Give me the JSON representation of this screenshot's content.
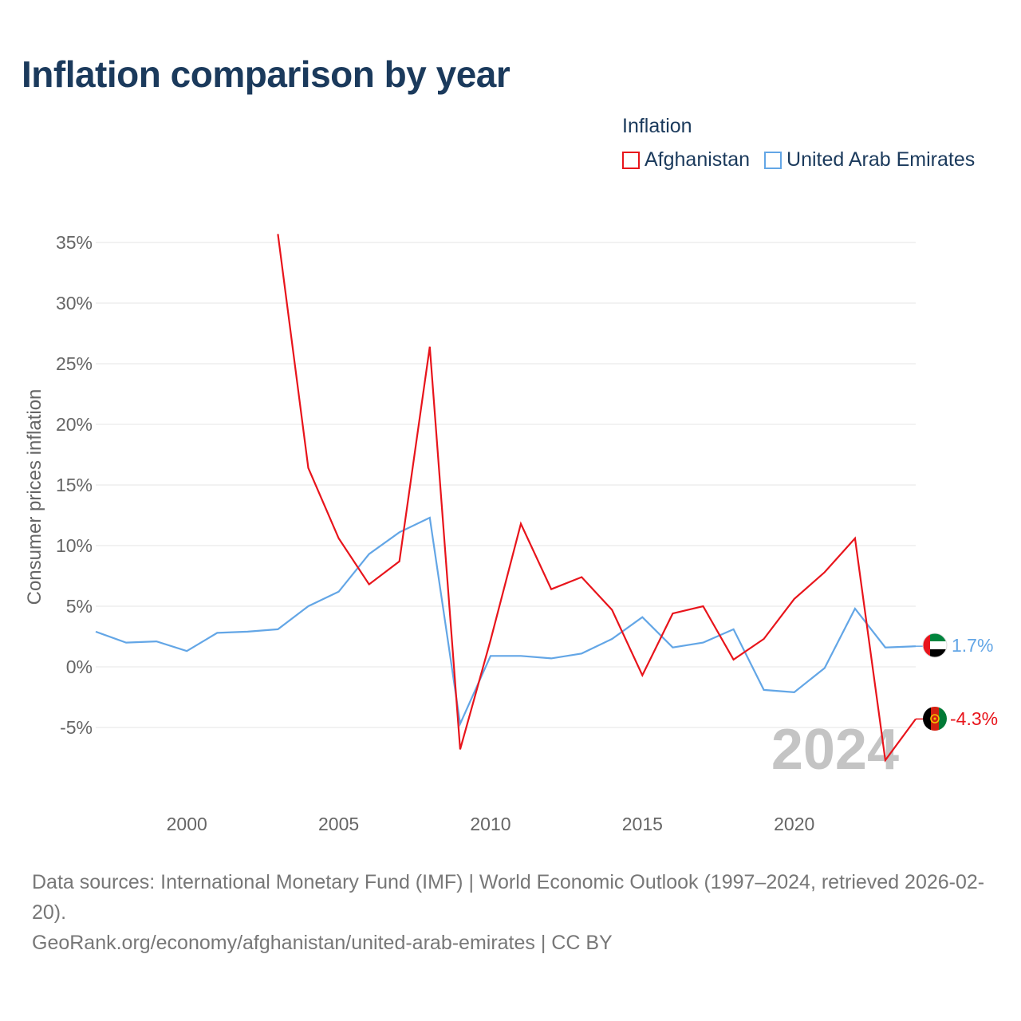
{
  "title": "Inflation comparison by year",
  "legend": {
    "title": "Inflation",
    "items": [
      {
        "label": "Afghanistan",
        "color": "#e8141b"
      },
      {
        "label": "United Arab Emirates",
        "color": "#63a6e6"
      }
    ]
  },
  "year_watermark": "2024",
  "end_labels": {
    "afghanistan": {
      "text": "-4.3%",
      "color": "#e8141b",
      "flag": "afghanistan-flag-icon"
    },
    "uae": {
      "text": "1.7%",
      "color": "#63a6e6",
      "flag": "uae-flag-icon"
    }
  },
  "footer": {
    "sources": "Data sources: International Monetary Fund (IMF) | World Economic Outlook (1997–2024, retrieved 2026-02-20).",
    "credit": "GeoRank.org/economy/afghanistan/united-arab-emirates | CC BY"
  },
  "chart_data": {
    "type": "line",
    "title": "Inflation comparison by year",
    "xlabel": "",
    "ylabel": "Consumer prices inflation",
    "xlim": [
      1997,
      2024
    ],
    "ylim": [
      -10,
      36
    ],
    "yticks": [
      -5,
      0,
      5,
      10,
      15,
      20,
      25,
      30,
      35
    ],
    "ytick_labels": [
      "-5%",
      "0%",
      "5%",
      "10%",
      "15%",
      "20%",
      "25%",
      "30%",
      "35%"
    ],
    "xticks": [
      2000,
      2005,
      2010,
      2015,
      2020
    ],
    "xtick_labels": [
      "2000",
      "2005",
      "2010",
      "2015",
      "2020"
    ],
    "grid": true,
    "series": [
      {
        "name": "Afghanistan",
        "color": "#e8141b",
        "x": [
          2003,
          2004,
          2005,
          2006,
          2007,
          2008,
          2009,
          2010,
          2011,
          2012,
          2013,
          2014,
          2015,
          2016,
          2017,
          2018,
          2019,
          2020,
          2021,
          2022,
          2023,
          2024
        ],
        "values": [
          35.7,
          16.4,
          10.6,
          6.8,
          8.7,
          26.4,
          -6.8,
          2.2,
          11.8,
          6.4,
          7.4,
          4.7,
          -0.7,
          4.4,
          5.0,
          0.6,
          2.3,
          5.6,
          7.8,
          10.6,
          -7.7,
          -4.3
        ]
      },
      {
        "name": "United Arab Emirates",
        "color": "#63a6e6",
        "x": [
          1997,
          1998,
          1999,
          2000,
          2001,
          2002,
          2003,
          2004,
          2005,
          2006,
          2007,
          2008,
          2009,
          2010,
          2011,
          2012,
          2013,
          2014,
          2015,
          2016,
          2017,
          2018,
          2019,
          2020,
          2021,
          2022,
          2023,
          2024
        ],
        "values": [
          2.9,
          2.0,
          2.1,
          1.3,
          2.8,
          2.9,
          3.1,
          5.0,
          6.2,
          9.3,
          11.1,
          12.3,
          -4.7,
          0.9,
          0.9,
          0.7,
          1.1,
          2.3,
          4.1,
          1.6,
          2.0,
          3.1,
          -1.9,
          -2.1,
          -0.1,
          4.8,
          1.6,
          1.7
        ]
      }
    ]
  }
}
